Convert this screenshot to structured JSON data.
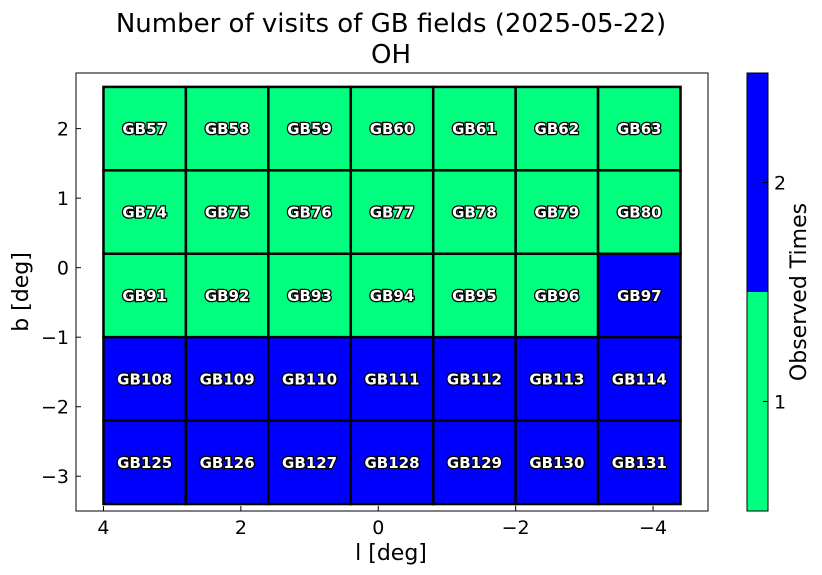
{
  "chart_data": {
    "type": "heatmap",
    "title": "Number of visits of GB fields (2025-05-22)",
    "subtitle": "OH",
    "xlabel": "l [deg]",
    "ylabel": "b [deg]",
    "xlim": [
      4.4,
      -4.8
    ],
    "ylim": [
      -3.5,
      2.8
    ],
    "x_ticks": [
      4,
      2,
      0,
      -2,
      -4
    ],
    "x_tick_labels": [
      "4",
      "2",
      "0",
      "−2",
      "−4"
    ],
    "y_ticks": [
      2,
      1,
      0,
      -1,
      -2,
      -3
    ],
    "y_tick_labels": [
      "2",
      "1",
      "0",
      "−1",
      "−2",
      "−3"
    ],
    "grid": false,
    "cell_size_deg": 1.2,
    "column_centers_l": [
      3.4,
      2.2,
      1.0,
      -0.2,
      -1.4,
      -2.6,
      -3.8
    ],
    "row_centers_b": [
      2.0,
      0.8,
      -0.4,
      -1.6,
      -2.8
    ],
    "fields": [
      [
        "GB57",
        "GB58",
        "GB59",
        "GB60",
        "GB61",
        "GB62",
        "GB63"
      ],
      [
        "GB74",
        "GB75",
        "GB76",
        "GB77",
        "GB78",
        "GB79",
        "GB80"
      ],
      [
        "GB91",
        "GB92",
        "GB93",
        "GB94",
        "GB95",
        "GB96",
        "GB97"
      ],
      [
        "GB108",
        "GB109",
        "GB110",
        "GB111",
        "GB112",
        "GB113",
        "GB114"
      ],
      [
        "GB125",
        "GB126",
        "GB127",
        "GB128",
        "GB129",
        "GB130",
        "GB131"
      ]
    ],
    "values": [
      [
        1,
        1,
        1,
        1,
        1,
        1,
        1
      ],
      [
        1,
        1,
        1,
        1,
        1,
        1,
        1
      ],
      [
        1,
        1,
        1,
        1,
        1,
        1,
        2
      ],
      [
        2,
        2,
        2,
        2,
        2,
        2,
        2
      ],
      [
        2,
        2,
        2,
        2,
        2,
        2,
        2
      ]
    ],
    "colorbar": {
      "label": "Observed Times",
      "ticks": [
        1,
        2
      ],
      "tick_labels": [
        "1",
        "2"
      ],
      "range": [
        0.5,
        2.5
      ],
      "colors": {
        "1": "#00ff7f",
        "2": "#0000ff"
      }
    }
  }
}
